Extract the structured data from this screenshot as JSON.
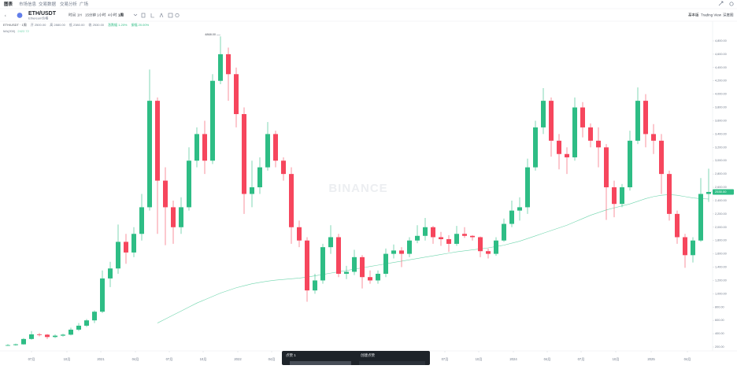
{
  "tabs": [
    "图表",
    "市场信息",
    "交易数据",
    "交易分析",
    "广场"
  ],
  "toolbar": {
    "symbol": "ETH/USDT",
    "subtitle": "Ethereum价格",
    "intervals": [
      "时间",
      "1H",
      "15分钟",
      "1小时",
      "4小时",
      "1周"
    ],
    "views": [
      "基本版",
      "Trading View",
      "深度图"
    ]
  },
  "popup": {
    "left": "点赞 1",
    "right": "创建点赞"
  },
  "chart_data": {
    "type": "candlestick",
    "legend_items": [
      "ETH/USDT · 1周",
      "开 2500.00",
      "高 2880.00",
      "低 2380.00",
      "收 2530.00",
      "涨跌幅 1.20%",
      "振幅 20.00%"
    ],
    "watermark": "BINANCE",
    "up_color": "#2ebd85",
    "down_color": "#f6465d",
    "grid": false,
    "open": [
      225,
      228,
      240,
      320,
      390,
      385,
      350,
      370,
      385,
      460,
      520,
      600,
      730,
      1230,
      1380,
      1780,
      1620,
      1900,
      2300,
      3900,
      2700,
      2300,
      2000,
      2300,
      3000,
      3400,
      3000,
      4200,
      4600,
      4300,
      3700,
      2500,
      2600,
      2900,
      3400,
      3000,
      2800,
      2000,
      1800,
      1050,
      1200,
      1700,
      1850,
      1300,
      1330,
      1550,
      1250,
      1200,
      1300,
      1600,
      1650,
      1600,
      1800,
      1870,
      2000,
      1850,
      1820,
      1750,
      1900,
      1870,
      1850,
      1640,
      1600,
      1800,
      2050,
      2250,
      2300,
      2900,
      3500,
      3900,
      3300,
      3100,
      3050,
      3800,
      3500,
      3300,
      3200,
      2600,
      2350,
      2600,
      3300,
      3900,
      3400,
      3300,
      2800,
      2200,
      1850,
      1580,
      1800,
      2500
    ],
    "high": [
      245,
      250,
      335,
      440,
      410,
      395,
      390,
      400,
      490,
      560,
      620,
      750,
      1350,
      1480,
      2040,
      1900,
      2000,
      2500,
      4370,
      3950,
      2900,
      2400,
      2450,
      3200,
      3500,
      3600,
      4300,
      4868,
      4700,
      4400,
      3800,
      3000,
      3050,
      3580,
      3450,
      3050,
      2900,
      2100,
      1850,
      1300,
      1750,
      2030,
      1900,
      1420,
      1660,
      1580,
      1350,
      1350,
      1680,
      1740,
      1700,
      1850,
      2030,
      2140,
      2020,
      1930,
      1880,
      2020,
      2000,
      1880,
      1860,
      1680,
      1850,
      2130,
      2400,
      2450,
      3030,
      3600,
      4090,
      3950,
      3400,
      3200,
      3950,
      3880,
      3560,
      3500,
      3250,
      2700,
      2650,
      3450,
      4100,
      4000,
      3550,
      3400,
      2850,
      2250,
      1900,
      1850,
      2740,
      2880
    ],
    "low": [
      215,
      220,
      235,
      310,
      360,
      320,
      335,
      355,
      375,
      440,
      500,
      560,
      710,
      1100,
      1300,
      1450,
      1550,
      1800,
      2250,
      1900,
      1730,
      1750,
      1900,
      2250,
      2900,
      2800,
      2950,
      4150,
      3900,
      3500,
      2200,
      2300,
      2500,
      2850,
      2900,
      2700,
      1750,
      1700,
      880,
      1000,
      1150,
      1600,
      1250,
      1220,
      1280,
      1080,
      1150,
      1150,
      1250,
      1530,
      1400,
      1550,
      1760,
      1800,
      1750,
      1720,
      1630,
      1720,
      1840,
      1800,
      1550,
      1530,
      1570,
      1780,
      2000,
      2100,
      2200,
      2850,
      3400,
      3060,
      2870,
      2800,
      3000,
      3350,
      3200,
      2900,
      2110,
      2150,
      2300,
      2550,
      3250,
      3200,
      3100,
      2500,
      2100,
      1750,
      1390,
      1470,
      1780,
      2380
    ],
    "close": [
      228,
      240,
      320,
      390,
      385,
      350,
      370,
      385,
      460,
      520,
      600,
      730,
      1230,
      1380,
      1780,
      1620,
      1900,
      2300,
      3900,
      2700,
      2300,
      2000,
      2300,
      3000,
      3400,
      3000,
      4200,
      4600,
      4300,
      3700,
      2500,
      2600,
      2900,
      3400,
      3000,
      2800,
      2000,
      1800,
      1050,
      1200,
      1700,
      1850,
      1300,
      1330,
      1550,
      1250,
      1200,
      1300,
      1600,
      1650,
      1600,
      1800,
      1870,
      2000,
      1850,
      1820,
      1750,
      1900,
      1870,
      1850,
      1640,
      1600,
      1800,
      2050,
      2250,
      2300,
      2900,
      3500,
      3900,
      3300,
      3100,
      3050,
      3800,
      3500,
      3300,
      3200,
      2600,
      2350,
      2600,
      3300,
      3900,
      3400,
      3300,
      2800,
      2200,
      1850,
      1580,
      1800,
      2500,
      2530
    ],
    "ma": {
      "name": "MA(200)",
      "value_label": "2422.72",
      "color": "#6fd5ad",
      "values": [
        null,
        null,
        null,
        null,
        null,
        null,
        null,
        null,
        null,
        null,
        null,
        null,
        null,
        null,
        null,
        null,
        null,
        null,
        null,
        560,
        620,
        680,
        740,
        800,
        860,
        910,
        960,
        1010,
        1050,
        1090,
        1120,
        1150,
        1170,
        1190,
        1205,
        1215,
        1225,
        1235,
        1250,
        1270,
        1290,
        1310,
        1330,
        1350,
        1370,
        1390,
        1410,
        1430,
        1450,
        1470,
        1490,
        1510,
        1530,
        1550,
        1570,
        1590,
        1610,
        1630,
        1645,
        1660,
        1675,
        1690,
        1710,
        1730,
        1760,
        1790,
        1830,
        1870,
        1910,
        1950,
        1990,
        2030,
        2080,
        2130,
        2180,
        2220,
        2260,
        2290,
        2320,
        2350,
        2390,
        2430,
        2460,
        2480,
        2490,
        2480,
        2460,
        2440,
        2430,
        2423
      ]
    },
    "peak": {
      "value": 4868,
      "label": "4868.00"
    },
    "last_price": {
      "value": 2530,
      "label": "2530.00"
    },
    "ylim": [
      141,
      5060
    ],
    "yticks": [
      {
        "value": 200,
        "label": "200.00"
      },
      {
        "value": 400,
        "label": "400.00"
      },
      {
        "value": 600,
        "label": "600.00"
      },
      {
        "value": 800,
        "label": "800.00"
      },
      {
        "value": 1000,
        "label": "1,000.00"
      },
      {
        "value": 1200,
        "label": "1,200.00"
      },
      {
        "value": 1400,
        "label": "1,400.00"
      },
      {
        "value": 1600,
        "label": "1,600.00"
      },
      {
        "value": 1800,
        "label": "1,800.00"
      },
      {
        "value": 2000,
        "label": "2,000.00"
      },
      {
        "value": 2200,
        "label": "2,200.00"
      },
      {
        "value": 2400,
        "label": "2,400.00"
      },
      {
        "value": 2600,
        "label": "2,600.00"
      },
      {
        "value": 2800,
        "label": "2,800.00"
      },
      {
        "value": 3000,
        "label": "3,000.00"
      },
      {
        "value": 3200,
        "label": "3,200.00"
      },
      {
        "value": 3400,
        "label": "3,400.00"
      },
      {
        "value": 3600,
        "label": "3,600.00"
      },
      {
        "value": 3800,
        "label": "3,800.00"
      },
      {
        "value": 4000,
        "label": "4,000.00"
      },
      {
        "value": 4200,
        "label": "4,200.00"
      },
      {
        "value": 4400,
        "label": "4,400.00"
      },
      {
        "value": 4600,
        "label": "4,600.00"
      },
      {
        "value": 4800,
        "label": "4,800.00"
      }
    ],
    "xticks": [
      {
        "value": 3,
        "label": "07月"
      },
      {
        "value": 7.5,
        "label": "10月"
      },
      {
        "value": 11.8,
        "label": "2021"
      },
      {
        "value": 16.2,
        "label": "04月"
      },
      {
        "value": 20.5,
        "label": "07月"
      },
      {
        "value": 24.8,
        "label": "10月"
      },
      {
        "value": 29.2,
        "label": "2022"
      },
      {
        "value": 33.5,
        "label": "04月"
      },
      {
        "value": 55.5,
        "label": "07月"
      },
      {
        "value": 59.8,
        "label": "10月"
      },
      {
        "value": 64.2,
        "label": "2024"
      },
      {
        "value": 68.5,
        "label": "04月"
      },
      {
        "value": 72.8,
        "label": "07月"
      },
      {
        "value": 77.2,
        "label": "10月"
      },
      {
        "value": 81.7,
        "label": "2025"
      },
      {
        "value": 86.3,
        "label": "04月"
      }
    ]
  }
}
